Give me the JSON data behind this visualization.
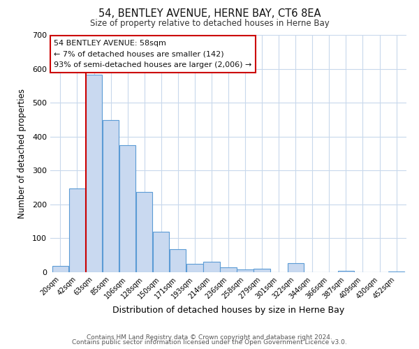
{
  "title": "54, BENTLEY AVENUE, HERNE BAY, CT6 8EA",
  "subtitle": "Size of property relative to detached houses in Herne Bay",
  "xlabel": "Distribution of detached houses by size in Herne Bay",
  "ylabel": "Number of detached properties",
  "bar_color": "#c9d9f0",
  "bar_edge_color": "#5b9bd5",
  "bin_labels": [
    "20sqm",
    "42sqm",
    "63sqm",
    "85sqm",
    "106sqm",
    "128sqm",
    "150sqm",
    "171sqm",
    "193sqm",
    "214sqm",
    "236sqm",
    "258sqm",
    "279sqm",
    "301sqm",
    "322sqm",
    "344sqm",
    "366sqm",
    "387sqm",
    "409sqm",
    "430sqm",
    "452sqm"
  ],
  "bar_heights": [
    18,
    248,
    583,
    449,
    374,
    236,
    120,
    68,
    24,
    30,
    14,
    8,
    10,
    0,
    27,
    0,
    0,
    5,
    0,
    0,
    3
  ],
  "ylim": [
    0,
    700
  ],
  "yticks": [
    0,
    100,
    200,
    300,
    400,
    500,
    600,
    700
  ],
  "vline_color": "#cc0000",
  "annotation_title": "54 BENTLEY AVENUE: 58sqm",
  "annotation_line1": "← 7% of detached houses are smaller (142)",
  "annotation_line2": "93% of semi-detached houses are larger (2,006) →",
  "annotation_box_color": "#ffffff",
  "annotation_box_edge": "#cc0000",
  "footer1": "Contains HM Land Registry data © Crown copyright and database right 2024.",
  "footer2": "Contains public sector information licensed under the Open Government Licence v3.0.",
  "background_color": "#ffffff",
  "grid_color": "#c8d8ec"
}
